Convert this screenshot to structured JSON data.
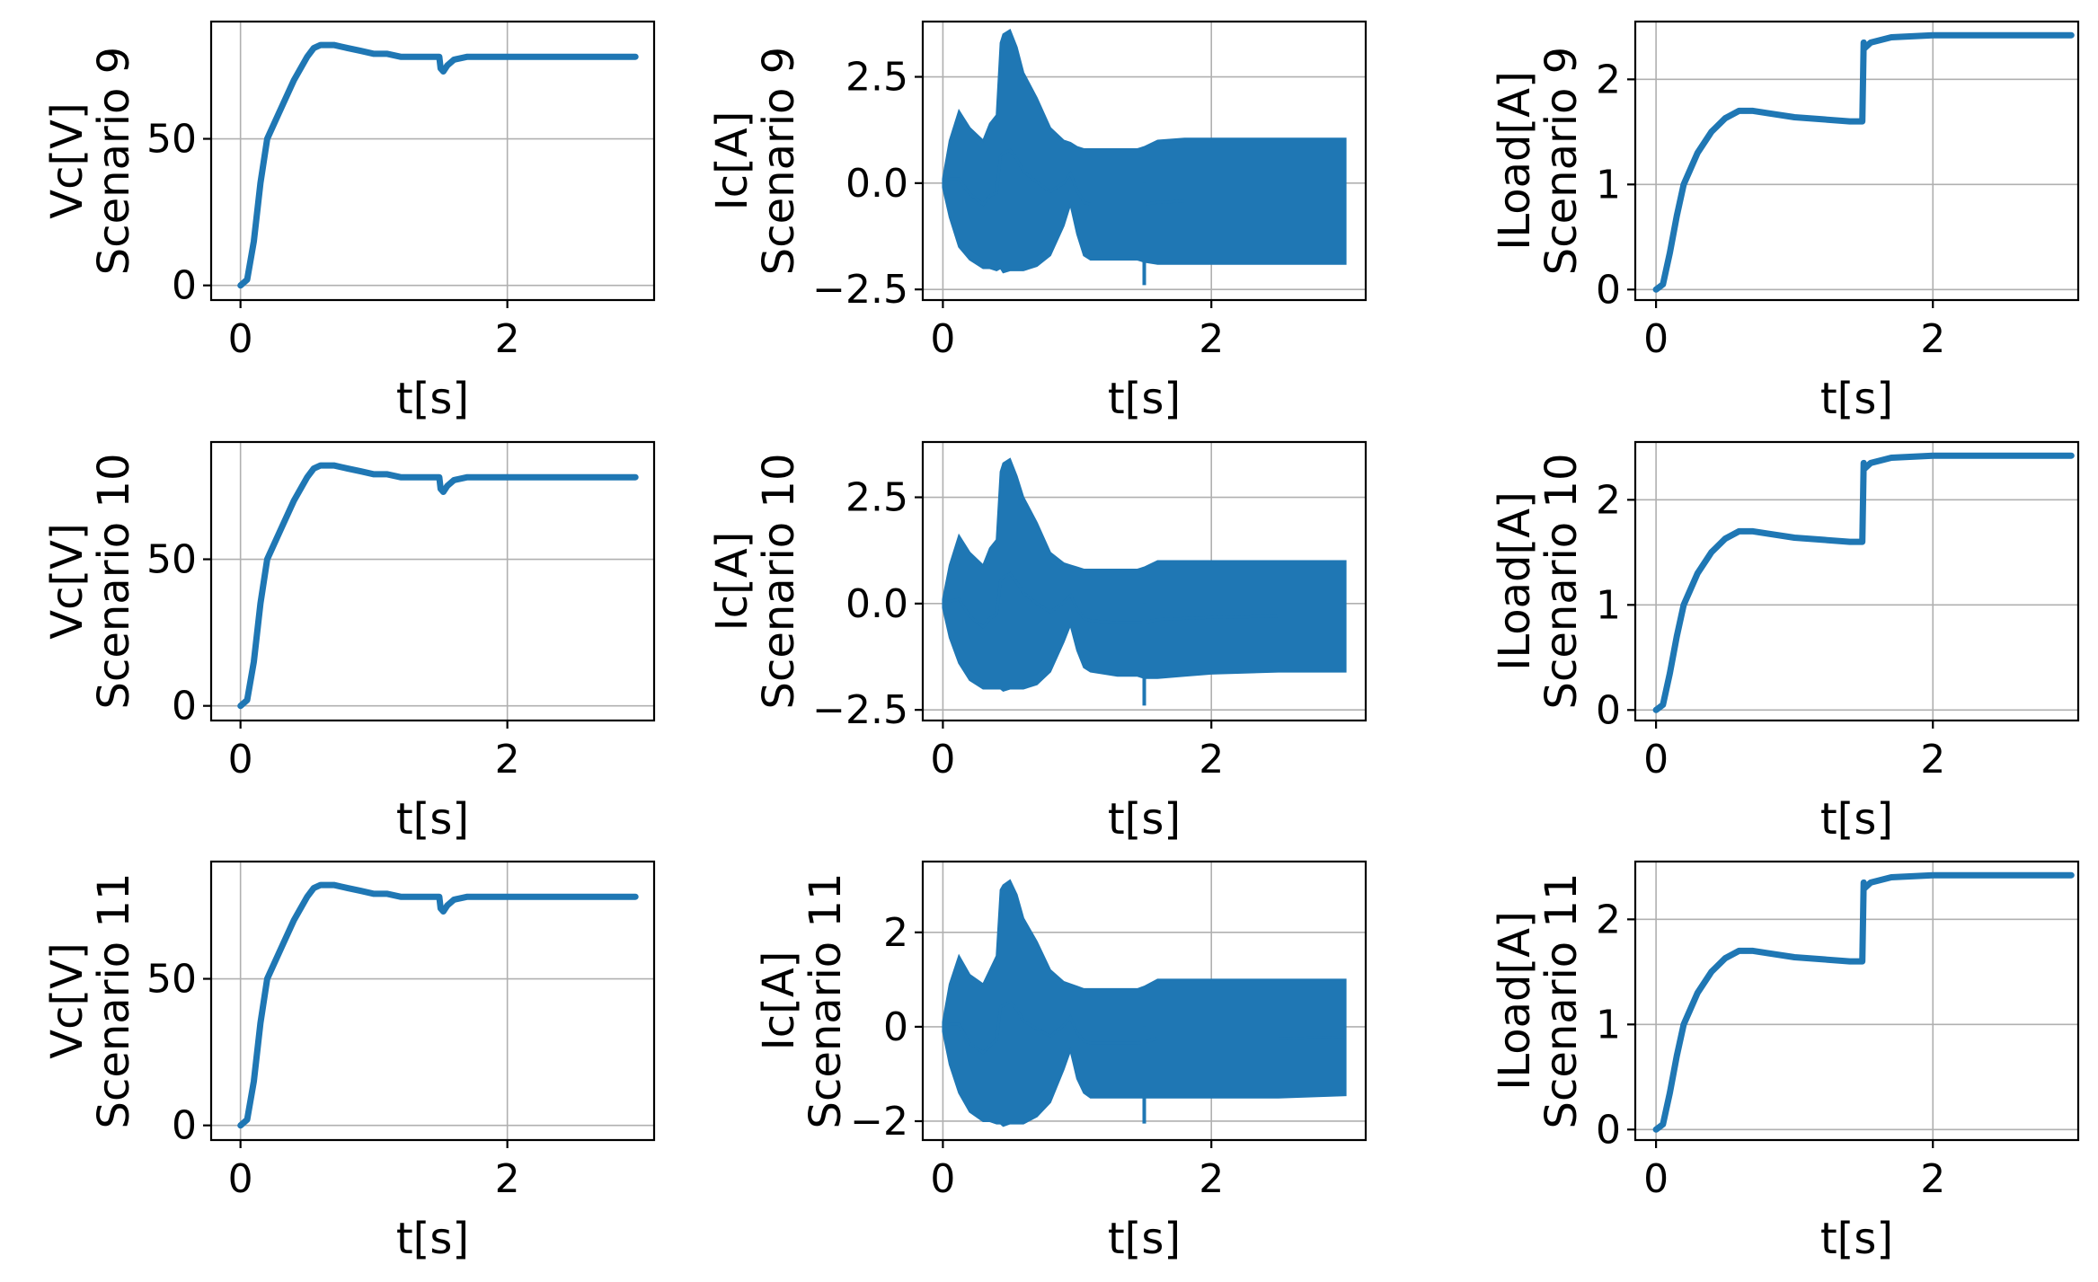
{
  "figure": {
    "rows": 3,
    "cols": 3,
    "line_color": "#1f77b4"
  },
  "chart_data": [
    {
      "type": "line",
      "row": 0,
      "col": 0,
      "signal": "vc",
      "ylabel_lines": [
        "Vc[V]",
        "Scenario 9"
      ],
      "xlabel": "t[s]",
      "xlim": [
        -0.22,
        3.1
      ],
      "ylim": [
        -5,
        90
      ],
      "xticks": [
        0,
        2
      ],
      "xtick_labels": [
        "0",
        "2"
      ],
      "yticks": [
        0,
        50
      ],
      "ytick_labels": [
        "0",
        "50"
      ],
      "x": [
        0,
        0.05,
        0.1,
        0.15,
        0.2,
        0.3,
        0.4,
        0.5,
        0.55,
        0.6,
        0.7,
        0.8,
        0.9,
        1.0,
        1.1,
        1.2,
        1.3,
        1.4,
        1.49,
        1.5,
        1.52,
        1.55,
        1.6,
        1.7,
        1.8,
        2.0,
        2.5,
        2.96
      ],
      "y": [
        0,
        2,
        15,
        35,
        50,
        60,
        70,
        78,
        81,
        82,
        82,
        81,
        80,
        79,
        79,
        78,
        78,
        78,
        78,
        74,
        73,
        75,
        77,
        78,
        78,
        78,
        78,
        78
      ],
      "band": 1.2
    },
    {
      "type": "line",
      "row": 0,
      "col": 1,
      "signal": "ic",
      "ylabel_lines": [
        "Ic[A]",
        "Scenario 9"
      ],
      "xlabel": "t[s]",
      "xlim": [
        -0.15,
        3.15
      ],
      "ylim": [
        -2.75,
        3.8
      ],
      "xticks": [
        0,
        2
      ],
      "xtick_labels": [
        "0",
        "2"
      ],
      "yticks": [
        -2.5,
        0,
        2.5
      ],
      "ytick_labels": [
        "−2.5",
        "0.0",
        "2.5"
      ],
      "x": [
        0,
        0.05,
        0.12,
        0.2,
        0.3,
        0.35,
        0.4,
        0.43,
        0.45,
        0.5,
        0.55,
        0.6,
        0.7,
        0.8,
        0.9,
        0.95,
        1.0,
        1.05,
        1.1,
        1.2,
        1.3,
        1.45,
        1.5,
        1.6,
        1.8,
        2.0,
        2.5,
        3.0
      ],
      "upper": [
        0.1,
        1.0,
        1.7,
        1.3,
        1.0,
        1.4,
        1.6,
        3.3,
        3.5,
        3.6,
        3.2,
        2.6,
        2.0,
        1.3,
        1.0,
        0.95,
        0.85,
        0.8,
        0.8,
        0.8,
        0.8,
        0.8,
        0.85,
        1.0,
        1.05,
        1.05,
        1.05,
        1.05
      ],
      "lower": [
        -0.1,
        -0.8,
        -1.5,
        -1.8,
        -2.0,
        -2.0,
        -2.05,
        -2.0,
        -2.1,
        -2.05,
        -2.05,
        -2.05,
        -1.95,
        -1.7,
        -1.0,
        -0.5,
        -1.2,
        -1.7,
        -1.8,
        -1.8,
        -1.8,
        -1.8,
        -1.85,
        -1.9,
        -1.9,
        -1.9,
        -1.9,
        -1.9
      ]
    },
    {
      "type": "line",
      "row": 0,
      "col": 2,
      "signal": "iload",
      "ylabel_lines": [
        "ILoad[A]",
        "Scenario 9"
      ],
      "xlabel": "t[s]",
      "xlim": [
        -0.15,
        3.05
      ],
      "ylim": [
        -0.1,
        2.55
      ],
      "xticks": [
        0,
        2
      ],
      "xtick_labels": [
        "0",
        "2"
      ],
      "yticks": [
        0,
        1,
        2
      ],
      "ytick_labels": [
        "0",
        "1",
        "2"
      ],
      "x": [
        0,
        0.05,
        0.1,
        0.15,
        0.2,
        0.3,
        0.4,
        0.5,
        0.6,
        0.7,
        0.8,
        1.0,
        1.2,
        1.4,
        1.49,
        1.5,
        1.51,
        1.55,
        1.7,
        2.0,
        2.5,
        3.0
      ],
      "y": [
        0,
        0.05,
        0.35,
        0.7,
        1.0,
        1.3,
        1.5,
        1.63,
        1.7,
        1.7,
        1.68,
        1.64,
        1.62,
        1.6,
        1.6,
        2.35,
        2.3,
        2.35,
        2.4,
        2.42,
        2.42,
        2.42
      ],
      "band": 0.03
    },
    {
      "type": "line",
      "row": 1,
      "col": 0,
      "signal": "vc",
      "ylabel_lines": [
        "Vc[V]",
        "Scenario 10"
      ],
      "xlabel": "t[s]",
      "xlim": [
        -0.22,
        3.1
      ],
      "ylim": [
        -5,
        90
      ],
      "xticks": [
        0,
        2
      ],
      "xtick_labels": [
        "0",
        "2"
      ],
      "yticks": [
        0,
        50
      ],
      "ytick_labels": [
        "0",
        "50"
      ],
      "x": [
        0,
        0.05,
        0.1,
        0.15,
        0.2,
        0.3,
        0.4,
        0.5,
        0.55,
        0.6,
        0.7,
        0.8,
        0.9,
        1.0,
        1.1,
        1.2,
        1.3,
        1.4,
        1.49,
        1.5,
        1.52,
        1.55,
        1.6,
        1.7,
        1.8,
        2.0,
        2.5,
        2.96
      ],
      "y": [
        0,
        2,
        15,
        35,
        50,
        60,
        70,
        78,
        81,
        82,
        82,
        81,
        80,
        79,
        79,
        78,
        78,
        78,
        78,
        74,
        73,
        75,
        77,
        78,
        78,
        78,
        78,
        78
      ],
      "band": 1.2
    },
    {
      "type": "line",
      "row": 1,
      "col": 1,
      "signal": "ic",
      "ylabel_lines": [
        "Ic[A]",
        "Scenario 10"
      ],
      "xlabel": "t[s]",
      "xlim": [
        -0.15,
        3.15
      ],
      "ylim": [
        -2.75,
        3.8
      ],
      "xticks": [
        0,
        2
      ],
      "xtick_labels": [
        "0",
        "2"
      ],
      "yticks": [
        -2.5,
        0,
        2.5
      ],
      "ytick_labels": [
        "−2.5",
        "0.0",
        "2.5"
      ],
      "x": [
        0,
        0.05,
        0.12,
        0.2,
        0.3,
        0.35,
        0.4,
        0.43,
        0.45,
        0.5,
        0.55,
        0.6,
        0.7,
        0.8,
        0.9,
        0.95,
        1.0,
        1.05,
        1.1,
        1.2,
        1.3,
        1.45,
        1.5,
        1.6,
        1.8,
        2.0,
        2.5,
        3.0
      ],
      "upper": [
        0.1,
        0.9,
        1.6,
        1.2,
        0.9,
        1.3,
        1.5,
        3.1,
        3.3,
        3.4,
        3.0,
        2.5,
        1.9,
        1.2,
        0.95,
        0.9,
        0.85,
        0.8,
        0.8,
        0.8,
        0.8,
        0.8,
        0.85,
        1.0,
        1.0,
        1.0,
        1.0,
        1.0
      ],
      "lower": [
        -0.1,
        -0.8,
        -1.4,
        -1.8,
        -2.0,
        -2.0,
        -2.0,
        -2.0,
        -2.05,
        -2.0,
        -2.0,
        -2.0,
        -1.9,
        -1.6,
        -0.9,
        -0.5,
        -1.1,
        -1.5,
        -1.6,
        -1.65,
        -1.7,
        -1.7,
        -1.75,
        -1.75,
        -1.7,
        -1.65,
        -1.6,
        -1.6
      ]
    },
    {
      "type": "line",
      "row": 1,
      "col": 2,
      "signal": "iload",
      "ylabel_lines": [
        "ILoad[A]",
        "Scenario 10"
      ],
      "xlabel": "t[s]",
      "xlim": [
        -0.15,
        3.05
      ],
      "ylim": [
        -0.1,
        2.55
      ],
      "xticks": [
        0,
        2
      ],
      "xtick_labels": [
        "0",
        "2"
      ],
      "yticks": [
        0,
        1,
        2
      ],
      "ytick_labels": [
        "0",
        "1",
        "2"
      ],
      "x": [
        0,
        0.05,
        0.1,
        0.15,
        0.2,
        0.3,
        0.4,
        0.5,
        0.6,
        0.7,
        0.8,
        1.0,
        1.2,
        1.4,
        1.49,
        1.5,
        1.51,
        1.55,
        1.7,
        2.0,
        2.5,
        3.0
      ],
      "y": [
        0,
        0.05,
        0.35,
        0.7,
        1.0,
        1.3,
        1.5,
        1.63,
        1.7,
        1.7,
        1.68,
        1.64,
        1.62,
        1.6,
        1.6,
        2.35,
        2.3,
        2.35,
        2.4,
        2.42,
        2.42,
        2.42
      ],
      "band": 0.03
    },
    {
      "type": "line",
      "row": 2,
      "col": 0,
      "signal": "vc",
      "ylabel_lines": [
        "Vc[V]",
        "Scenario 11"
      ],
      "xlabel": "t[s]",
      "xlim": [
        -0.22,
        3.1
      ],
      "ylim": [
        -5,
        90
      ],
      "xticks": [
        0,
        2
      ],
      "xtick_labels": [
        "0",
        "2"
      ],
      "yticks": [
        0,
        50
      ],
      "ytick_labels": [
        "0",
        "50"
      ],
      "x": [
        0,
        0.05,
        0.1,
        0.15,
        0.2,
        0.3,
        0.4,
        0.5,
        0.55,
        0.6,
        0.7,
        0.8,
        0.9,
        1.0,
        1.1,
        1.2,
        1.3,
        1.4,
        1.49,
        1.5,
        1.52,
        1.55,
        1.6,
        1.7,
        1.8,
        2.0,
        2.5,
        2.96
      ],
      "y": [
        0,
        2,
        15,
        35,
        50,
        60,
        70,
        78,
        81,
        82,
        82,
        81,
        80,
        79,
        79,
        78,
        78,
        78,
        78,
        74,
        73,
        75,
        77,
        78,
        78,
        78,
        78,
        78
      ],
      "band": 1.2
    },
    {
      "type": "line",
      "row": 2,
      "col": 1,
      "signal": "ic",
      "ylabel_lines": [
        "Ic[A]",
        "Scenario 11"
      ],
      "xlabel": "t[s]",
      "xlim": [
        -0.15,
        3.15
      ],
      "ylim": [
        -2.4,
        3.5
      ],
      "xticks": [
        0,
        2
      ],
      "xtick_labels": [
        "0",
        "2"
      ],
      "yticks": [
        -2,
        0,
        2
      ],
      "ytick_labels": [
        "−2",
        "0",
        "2"
      ],
      "x": [
        0,
        0.05,
        0.12,
        0.2,
        0.3,
        0.35,
        0.4,
        0.43,
        0.45,
        0.5,
        0.55,
        0.6,
        0.7,
        0.8,
        0.9,
        0.95,
        1.0,
        1.05,
        1.1,
        1.2,
        1.3,
        1.45,
        1.5,
        1.6,
        1.8,
        2.0,
        2.5,
        3.0
      ],
      "upper": [
        0.1,
        0.9,
        1.5,
        1.1,
        0.9,
        1.2,
        1.5,
        2.9,
        3.0,
        3.1,
        2.8,
        2.3,
        1.8,
        1.2,
        0.95,
        0.9,
        0.85,
        0.8,
        0.8,
        0.8,
        0.8,
        0.8,
        0.85,
        1.0,
        1.0,
        1.0,
        1.0,
        1.0
      ],
      "lower": [
        -0.1,
        -0.8,
        -1.4,
        -1.8,
        -2.0,
        -2.0,
        -2.05,
        -2.05,
        -2.1,
        -2.05,
        -2.05,
        -2.05,
        -1.9,
        -1.6,
        -0.9,
        -0.5,
        -1.1,
        -1.4,
        -1.5,
        -1.5,
        -1.5,
        -1.5,
        -1.5,
        -1.5,
        -1.5,
        -1.5,
        -1.5,
        -1.45
      ]
    },
    {
      "type": "line",
      "row": 2,
      "col": 2,
      "signal": "iload",
      "ylabel_lines": [
        "ILoad[A]",
        "Scenario 11"
      ],
      "xlabel": "t[s]",
      "xlim": [
        -0.15,
        3.05
      ],
      "ylim": [
        -0.1,
        2.55
      ],
      "xticks": [
        0,
        2
      ],
      "xtick_labels": [
        "0",
        "2"
      ],
      "yticks": [
        0,
        1,
        2
      ],
      "ytick_labels": [
        "0",
        "1",
        "2"
      ],
      "x": [
        0,
        0.05,
        0.1,
        0.15,
        0.2,
        0.3,
        0.4,
        0.5,
        0.6,
        0.7,
        0.8,
        1.0,
        1.2,
        1.4,
        1.49,
        1.5,
        1.51,
        1.55,
        1.7,
        2.0,
        2.5,
        3.0
      ],
      "y": [
        0,
        0.05,
        0.35,
        0.7,
        1.0,
        1.3,
        1.5,
        1.63,
        1.7,
        1.7,
        1.68,
        1.64,
        1.62,
        1.6,
        1.6,
        2.35,
        2.3,
        2.35,
        2.4,
        2.42,
        2.42,
        2.42
      ],
      "band": 0.03
    }
  ]
}
